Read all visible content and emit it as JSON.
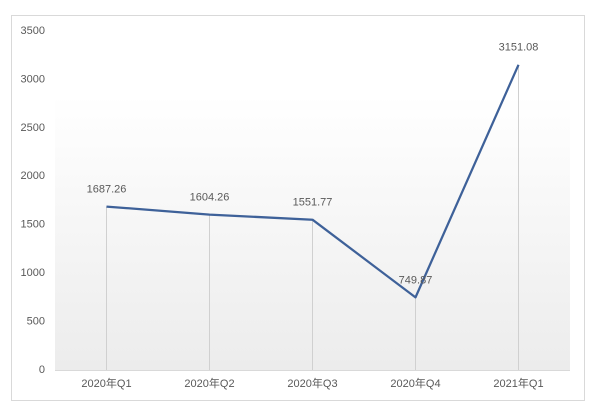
{
  "chart_data": {
    "type": "line",
    "categories": [
      "2020年Q1",
      "2020年Q2",
      "2020年Q3",
      "2020年Q4",
      "2021年Q1"
    ],
    "values": [
      1687.26,
      1604.26,
      1551.77,
      749.87,
      3151.08
    ],
    "color": "#3e6199",
    "ylim": [
      0,
      3500
    ],
    "yticks": [
      0,
      500,
      1000,
      1500,
      2000,
      2500,
      3000,
      3500
    ],
    "grid": false,
    "drop_lines": true
  }
}
